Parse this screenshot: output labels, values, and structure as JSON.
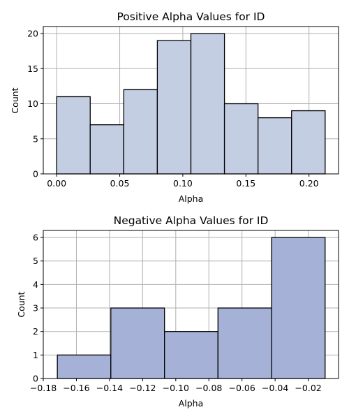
{
  "chart_data": [
    {
      "type": "bar",
      "title": "Positive Alpha Values for ID",
      "xlabel": "Alpha",
      "ylabel": "Count",
      "bins": [
        [
          0.0,
          0.0266
        ],
        [
          0.0266,
          0.0532
        ],
        [
          0.0532,
          0.0798
        ],
        [
          0.0798,
          0.1064
        ],
        [
          0.1064,
          0.133
        ],
        [
          0.133,
          0.1596
        ],
        [
          0.1596,
          0.1862
        ],
        [
          0.1862,
          0.2128
        ]
      ],
      "values": [
        11,
        7,
        12,
        19,
        20,
        10,
        8,
        9
      ],
      "xlim": [
        -0.0106,
        0.2234
      ],
      "ylim": [
        0,
        21
      ],
      "xticks": [
        0.0,
        0.05,
        0.1,
        0.15,
        0.2
      ],
      "xtick_labels": [
        "0.00",
        "0.05",
        "0.10",
        "0.15",
        "0.20"
      ],
      "yticks": [
        0,
        5,
        10,
        15,
        20
      ],
      "ytick_labels": [
        "0",
        "5",
        "10",
        "15",
        "20"
      ],
      "grid": true,
      "color": "#c4cee3"
    },
    {
      "type": "bar",
      "title": "Negative Alpha Values for ID",
      "xlabel": "Alpha",
      "ylabel": "Count",
      "bins": [
        [
          -0.1715,
          -0.1392
        ],
        [
          -0.1392,
          -0.1068
        ],
        [
          -0.1068,
          -0.0745
        ],
        [
          -0.0745,
          -0.0421
        ],
        [
          -0.0421,
          -0.0098
        ]
      ],
      "values": [
        1,
        3,
        2,
        3,
        6
      ],
      "xlim": [
        -0.18,
        -0.0017
      ],
      "ylim": [
        0,
        6.3
      ],
      "xticks": [
        -0.18,
        -0.16,
        -0.14,
        -0.12,
        -0.1,
        -0.08,
        -0.06,
        -0.04,
        -0.02
      ],
      "xtick_labels": [
        "−0.18",
        "−0.16",
        "−0.14",
        "−0.12",
        "−0.10",
        "−0.08",
        "−0.06",
        "−0.04",
        "−0.02"
      ],
      "yticks": [
        0,
        1,
        2,
        3,
        4,
        5,
        6
      ],
      "ytick_labels": [
        "0",
        "1",
        "2",
        "3",
        "4",
        "5",
        "6"
      ],
      "grid": true,
      "color": "#a5b1d6"
    }
  ]
}
